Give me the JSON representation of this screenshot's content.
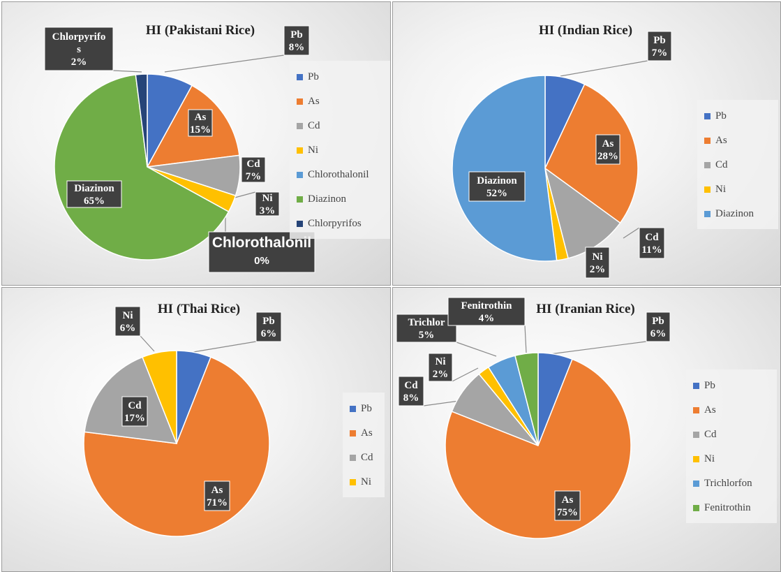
{
  "chart_data": [
    {
      "type": "pie",
      "title": "HI (Pakistani Rice)",
      "slices": [
        {
          "name": "Pb",
          "value": 8,
          "label": "Pb\n8%",
          "color": "#4472C4"
        },
        {
          "name": "As",
          "value": 15,
          "label": "As\n15%",
          "color": "#ED7D31"
        },
        {
          "name": "Cd",
          "value": 7,
          "label": "Cd\n7%",
          "color": "#A5A5A5"
        },
        {
          "name": "Ni",
          "value": 3,
          "label": "Ni\n3%",
          "color": "#FFC000"
        },
        {
          "name": "Chlorothalonil",
          "value": 0,
          "label": "Chlorothalonil\n0%",
          "color": "#5B9BD5"
        },
        {
          "name": "Diazinon",
          "value": 65,
          "label": "Diazinon\n65%",
          "color": "#70AD47"
        },
        {
          "name": "Chlorpyrifos",
          "value": 2,
          "label": "Chlorpyrifo\ns\n2%",
          "color": "#264478"
        }
      ],
      "legend": [
        "Pb",
        "As",
        "Cd",
        "Ni",
        "Chlorothalonil",
        "Diazinon",
        "Chlorpyrifos"
      ],
      "legend_position": "right"
    },
    {
      "type": "pie",
      "title": "HI (Indian Rice)",
      "slices": [
        {
          "name": "Pb",
          "value": 7,
          "label": "Pb\n7%",
          "color": "#4472C4"
        },
        {
          "name": "As",
          "value": 28,
          "label": "As\n28%",
          "color": "#ED7D31"
        },
        {
          "name": "Cd",
          "value": 11,
          "label": "Cd\n11%",
          "color": "#A5A5A5"
        },
        {
          "name": "Ni",
          "value": 2,
          "label": "Ni\n2%",
          "color": "#FFC000"
        },
        {
          "name": "Diazinon",
          "value": 52,
          "label": "Diazinon\n52%",
          "color": "#5B9BD5"
        }
      ],
      "legend": [
        "Pb",
        "As",
        "Cd",
        "Ni",
        "Diazinon"
      ],
      "legend_position": "right"
    },
    {
      "type": "pie",
      "title": "HI (Thai Rice)",
      "slices": [
        {
          "name": "Pb",
          "value": 6,
          "label": "Pb\n6%",
          "color": "#4472C4"
        },
        {
          "name": "As",
          "value": 71,
          "label": "As\n71%",
          "color": "#ED7D31"
        },
        {
          "name": "Cd",
          "value": 17,
          "label": "Cd\n17%",
          "color": "#A5A5A5"
        },
        {
          "name": "Ni",
          "value": 6,
          "label": "Ni\n6%",
          "color": "#FFC000"
        }
      ],
      "legend": [
        "Pb",
        "As",
        "Cd",
        "Ni"
      ],
      "legend_position": "right"
    },
    {
      "type": "pie",
      "title": "HI (Iranian Rice)",
      "slices": [
        {
          "name": "Pb",
          "value": 6,
          "label": "Pb\n6%",
          "color": "#4472C4"
        },
        {
          "name": "As",
          "value": 75,
          "label": "As\n75%",
          "color": "#ED7D31"
        },
        {
          "name": "Cd",
          "value": 8,
          "label": "Cd\n8%",
          "color": "#A5A5A5"
        },
        {
          "name": "Ni",
          "value": 2,
          "label": "Ni\n2%",
          "color": "#FFC000"
        },
        {
          "name": "Trichlorfon",
          "value": 5,
          "label": "Trichlor\n5%",
          "color": "#5B9BD5"
        },
        {
          "name": "Fenitrothin",
          "value": 4,
          "label": "Fenitrothin\n4%",
          "color": "#70AD47"
        }
      ],
      "legend": [
        "Pb",
        "As",
        "Cd",
        "Ni",
        "Trichlorfon",
        "Fenitrothin"
      ],
      "legend_position": "right"
    }
  ]
}
